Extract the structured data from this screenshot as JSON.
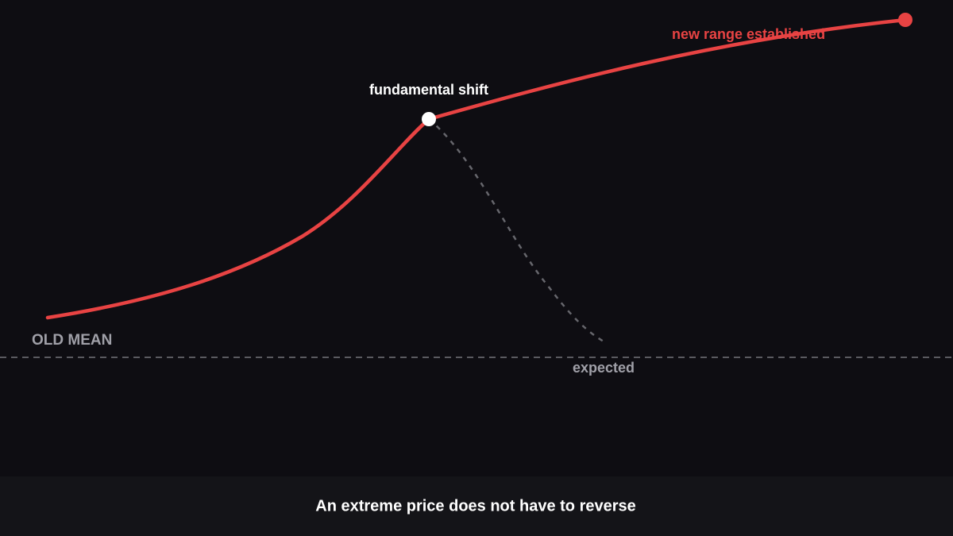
{
  "diagram": {
    "labels": {
      "new_range": "new range established",
      "shift": "fundamental shift",
      "old_mean": "OLD MEAN",
      "expected": "expected"
    },
    "caption": "An extreme price does not have to reverse"
  }
}
